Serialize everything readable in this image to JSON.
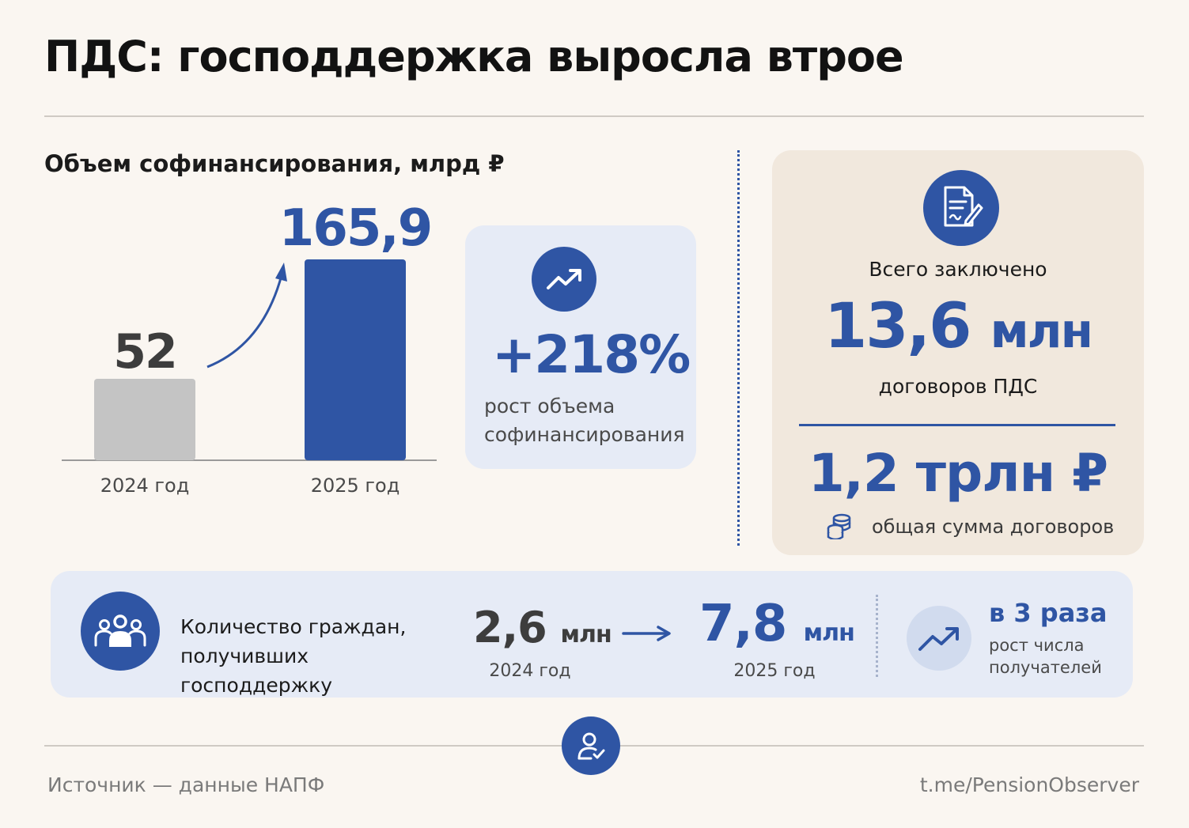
{
  "title": "ПДС: господдержка выросла втрое",
  "chart_data": {
    "type": "bar",
    "title": "Объем софинансирования, млрд ₽",
    "categories": [
      "2024 год",
      "2025 год"
    ],
    "values": [
      52,
      165.9
    ],
    "value_labels": [
      "52",
      "165,9"
    ],
    "ylim": [
      0,
      170
    ],
    "grid": false,
    "colors": [
      "#c4c4c4",
      "#2f55a4"
    ]
  },
  "growth": {
    "icon": "trend-up-icon",
    "value": "+218%",
    "label": "рост объема софинансирования"
  },
  "contracts": {
    "icon": "document-signature-icon",
    "label": "Всего заключено",
    "value": "13,6",
    "unit": "млн",
    "sub": "договоров ПДС",
    "sum_value": "1,2 трлн ₽",
    "sum_icon": "coins-icon",
    "sum_label": "общая сумма договоров"
  },
  "recipients": {
    "icon": "people-group-icon",
    "label": "Количество граждан, получивших господдержку",
    "value_2024": "2,6",
    "unit_2024": "млн",
    "year_2024": "2024 год",
    "value_2025": "7,8",
    "unit_2025": "млн",
    "year_2025": "2025 год",
    "times_value": "в 3 раза",
    "times_label": "рост числа получателей",
    "trend_icon": "trend-up-icon"
  },
  "footer": {
    "center_icon": "user-check-icon",
    "source": "Источник — данные НАПФ",
    "link": "t.me/PensionObserver"
  },
  "colors": {
    "accent": "#2f55a4",
    "background": "#faf6f1",
    "bar_2024": "#c4c4c4",
    "panel_blue": "#e6ebf6",
    "panel_beige": "#f1e8dd"
  }
}
